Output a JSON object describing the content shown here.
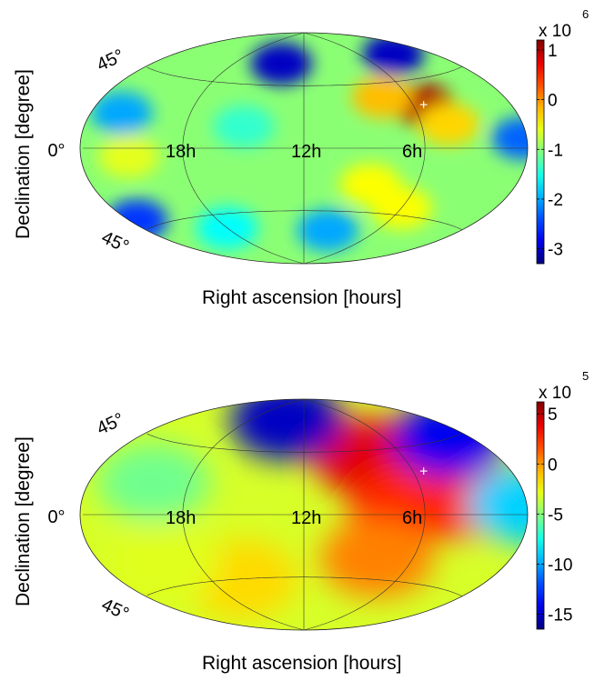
{
  "chart_data": [
    {
      "type": "heatmap",
      "projection": "hammer-aitoff all-sky",
      "xlabel": "Right ascension [hours]",
      "ylabel": "Declination [degree]",
      "ra_tick_labels": [
        "18h",
        "12h",
        "6h"
      ],
      "dec_tick_labels": [
        "45°",
        "0°",
        "45°"
      ],
      "marker": {
        "symbol": "+",
        "ra_hours": 5.4,
        "dec_deg": 28
      },
      "colorbar": {
        "multiplier": "x 10",
        "exponent": "6",
        "ticks": [
          1,
          0,
          -1,
          -2,
          -3
        ],
        "tick_labels": [
          "1",
          "0",
          "-1",
          "-2",
          "-3"
        ],
        "range": [
          -3.3,
          1.2
        ],
        "colormap": "jet"
      },
      "features": [
        {
          "ra_hours": 5.4,
          "dec_deg": 28,
          "value": 1.0
        },
        {
          "ra_hours": 7.5,
          "dec_deg": 35,
          "value": -0.2
        },
        {
          "ra_hours": 4.5,
          "dec_deg": 15,
          "value": -0.3
        },
        {
          "ra_hours": 8.5,
          "dec_deg": -25,
          "value": -0.5
        },
        {
          "ra_hours": 6.0,
          "dec_deg": -40,
          "value": -0.5
        },
        {
          "ra_hours": 21.0,
          "dec_deg": -5,
          "value": -0.6
        },
        {
          "ra_hours": 14.0,
          "dec_deg": 62,
          "value": -3.0
        },
        {
          "ra_hours": 3.0,
          "dec_deg": 62,
          "value": -3.0
        },
        {
          "ra_hours": 22.0,
          "dec_deg": 20,
          "value": -2.0
        },
        {
          "ra_hours": 23.5,
          "dec_deg": -40,
          "value": -2.5
        },
        {
          "ra_hours": 0.3,
          "dec_deg": 5,
          "value": -2.3
        },
        {
          "ra_hours": 10.0,
          "dec_deg": -60,
          "value": -2.0
        },
        {
          "ra_hours": 18.0,
          "dec_deg": -55,
          "value": -1.6
        },
        {
          "ra_hours": 15.0,
          "dec_deg": 15,
          "value": -1.4
        }
      ]
    },
    {
      "type": "heatmap",
      "projection": "hammer-aitoff all-sky",
      "xlabel": "Right ascension [hours]",
      "ylabel": "Declination [degree]",
      "ra_tick_labels": [
        "18h",
        "12h",
        "6h"
      ],
      "dec_tick_labels": [
        "45°",
        "0°",
        "45°"
      ],
      "marker": {
        "symbol": "+",
        "ra_hours": 5.4,
        "dec_deg": 28
      },
      "colorbar": {
        "multiplier": "x 10",
        "exponent": "5",
        "ticks": [
          5,
          0,
          -5,
          -10,
          -15
        ],
        "tick_labels": [
          "5",
          "0",
          "-5",
          "-10",
          "-15"
        ],
        "range": [
          -16.5,
          6.2
        ],
        "colormap": "jet"
      },
      "features": [
        {
          "ra_hours": 5.4,
          "dec_deg": 28,
          "value": 5.5
        },
        {
          "ra_hours": 8.0,
          "dec_deg": 40,
          "value": 4.0
        },
        {
          "ra_hours": 3.5,
          "dec_deg": 10,
          "value": 3.0
        },
        {
          "ra_hours": 7.0,
          "dec_deg": 5,
          "value": 2.5
        },
        {
          "ra_hours": 8.0,
          "dec_deg": -30,
          "value": 0.5
        },
        {
          "ra_hours": 14.0,
          "dec_deg": 70,
          "value": -15.0
        },
        {
          "ra_hours": 1.5,
          "dec_deg": 45,
          "value": -14.0
        },
        {
          "ra_hours": 0.2,
          "dec_deg": 5,
          "value": -9.0
        },
        {
          "ra_hours": 20.0,
          "dec_deg": 20,
          "value": -5.5
        },
        {
          "ra_hours": 16.0,
          "dec_deg": -45,
          "value": -1.5
        },
        {
          "ra_hours": 20.0,
          "dec_deg": -30,
          "value": -3.0
        }
      ]
    }
  ]
}
